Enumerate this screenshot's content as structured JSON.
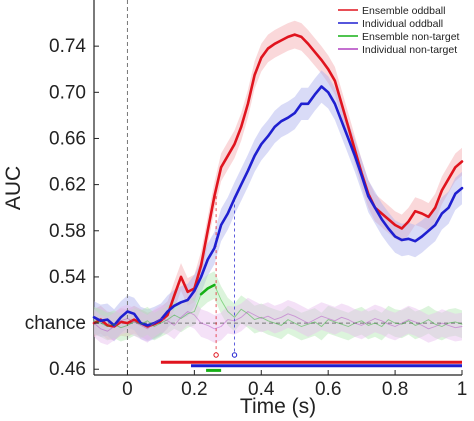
{
  "chart_data": {
    "type": "line",
    "title": "",
    "xlabel": "Time (s)",
    "ylabel": "AUC",
    "xlim": [
      -0.1,
      1.0
    ],
    "ylim": [
      0.455,
      0.78
    ],
    "grid": false,
    "legend_position": "top-right",
    "x_ticks": [
      0,
      0.2,
      0.4,
      0.6,
      0.8,
      1
    ],
    "x_tick_labels": [
      "0",
      "0.2",
      "0.4",
      "0.6",
      "0.8",
      "1"
    ],
    "y_ticks": [
      0.46,
      0.5,
      0.54,
      0.58,
      0.62,
      0.66,
      0.7,
      0.74
    ],
    "y_tick_labels": [
      "0.46",
      "chance",
      "0.54",
      "0.58",
      "0.62",
      "0.66",
      "0.70",
      "0.74"
    ],
    "chance_level": 0.5,
    "stimulus_onset": 0,
    "markers": [
      {
        "x": 0.265,
        "y": 0.61,
        "color": "#e0141e"
      },
      {
        "x": 0.32,
        "y": 0.608,
        "color": "#1f1fd0"
      }
    ],
    "series": [
      {
        "name": "Ensemble oddball",
        "color": "#e0141e",
        "band_color": "#f4a8ac",
        "error": 0.012,
        "x": [
          -0.1,
          -0.08,
          -0.06,
          -0.04,
          -0.02,
          0,
          0.02,
          0.04,
          0.06,
          0.08,
          0.1,
          0.12,
          0.14,
          0.16,
          0.18,
          0.2,
          0.22,
          0.24,
          0.26,
          0.28,
          0.3,
          0.32,
          0.34,
          0.36,
          0.38,
          0.4,
          0.42,
          0.44,
          0.46,
          0.48,
          0.5,
          0.52,
          0.54,
          0.56,
          0.58,
          0.6,
          0.62,
          0.64,
          0.66,
          0.68,
          0.7,
          0.72,
          0.74,
          0.76,
          0.78,
          0.8,
          0.82,
          0.84,
          0.86,
          0.88,
          0.9,
          0.92,
          0.94,
          0.96,
          0.98,
          1.0
        ],
        "y": [
          0.5,
          0.503,
          0.498,
          0.497,
          0.501,
          0.5,
          0.503,
          0.5,
          0.497,
          0.499,
          0.502,
          0.507,
          0.524,
          0.54,
          0.527,
          0.53,
          0.55,
          0.58,
          0.61,
          0.635,
          0.645,
          0.655,
          0.67,
          0.69,
          0.715,
          0.73,
          0.738,
          0.742,
          0.745,
          0.748,
          0.75,
          0.748,
          0.742,
          0.735,
          0.728,
          0.72,
          0.71,
          0.69,
          0.67,
          0.65,
          0.63,
          0.612,
          0.6,
          0.595,
          0.59,
          0.585,
          0.582,
          0.588,
          0.597,
          0.595,
          0.592,
          0.6,
          0.615,
          0.625,
          0.635,
          0.64
        ]
      },
      {
        "name": "Individual oddball",
        "color": "#1f1fd0",
        "band_color": "#aab0ee",
        "error": 0.014,
        "x": [
          -0.1,
          -0.08,
          -0.06,
          -0.04,
          -0.02,
          0,
          0.02,
          0.04,
          0.06,
          0.08,
          0.1,
          0.12,
          0.14,
          0.16,
          0.18,
          0.2,
          0.22,
          0.24,
          0.26,
          0.28,
          0.3,
          0.32,
          0.34,
          0.36,
          0.38,
          0.4,
          0.42,
          0.44,
          0.46,
          0.48,
          0.5,
          0.52,
          0.54,
          0.56,
          0.58,
          0.6,
          0.62,
          0.64,
          0.66,
          0.68,
          0.7,
          0.72,
          0.74,
          0.76,
          0.78,
          0.8,
          0.82,
          0.84,
          0.86,
          0.88,
          0.9,
          0.92,
          0.94,
          0.96,
          0.98,
          1.0
        ],
        "y": [
          0.505,
          0.502,
          0.503,
          0.498,
          0.505,
          0.51,
          0.508,
          0.5,
          0.498,
          0.5,
          0.503,
          0.51,
          0.515,
          0.518,
          0.52,
          0.528,
          0.54,
          0.555,
          0.565,
          0.585,
          0.595,
          0.608,
          0.62,
          0.632,
          0.645,
          0.655,
          0.662,
          0.67,
          0.675,
          0.678,
          0.682,
          0.69,
          0.69,
          0.698,
          0.705,
          0.7,
          0.69,
          0.675,
          0.66,
          0.645,
          0.628,
          0.61,
          0.6,
          0.59,
          0.582,
          0.575,
          0.572,
          0.573,
          0.571,
          0.575,
          0.58,
          0.585,
          0.595,
          0.6,
          0.612,
          0.617
        ]
      },
      {
        "name": "Ensemble non-target",
        "color": "#16b016",
        "band_color": "#b2e6b2",
        "error": 0.012,
        "x": [
          -0.1,
          -0.08,
          -0.06,
          -0.04,
          -0.02,
          0,
          0.02,
          0.04,
          0.06,
          0.08,
          0.1,
          0.12,
          0.14,
          0.16,
          0.18,
          0.2,
          0.22,
          0.24,
          0.26,
          0.28,
          0.3,
          0.32,
          0.34,
          0.36,
          0.38,
          0.4,
          0.42,
          0.44,
          0.46,
          0.48,
          0.5,
          0.52,
          0.54,
          0.56,
          0.58,
          0.6,
          0.62,
          0.64,
          0.66,
          0.68,
          0.7,
          0.72,
          0.74,
          0.76,
          0.78,
          0.8,
          0.82,
          0.84,
          0.86,
          0.88,
          0.9,
          0.92,
          0.94,
          0.96,
          0.98,
          1.0
        ],
        "y": [
          0.502,
          0.5,
          0.497,
          0.499,
          0.496,
          0.498,
          0.501,
          0.499,
          0.502,
          0.497,
          0.5,
          0.503,
          0.507,
          0.504,
          0.508,
          0.51,
          0.525,
          0.53,
          0.533,
          0.52,
          0.51,
          0.505,
          0.512,
          0.508,
          0.503,
          0.505,
          0.502,
          0.5,
          0.498,
          0.503,
          0.5,
          0.497,
          0.499,
          0.501,
          0.497,
          0.503,
          0.501,
          0.499,
          0.497,
          0.5,
          0.502,
          0.498,
          0.5,
          0.497,
          0.503,
          0.5,
          0.499,
          0.502,
          0.498,
          0.5,
          0.503,
          0.499,
          0.497,
          0.5,
          0.501,
          0.499
        ]
      },
      {
        "name": "Individual non-target",
        "color": "#b040c0",
        "band_color": "#e6bcee",
        "error": 0.012,
        "x": [
          -0.1,
          -0.08,
          -0.06,
          -0.04,
          -0.02,
          0,
          0.02,
          0.04,
          0.06,
          0.08,
          0.1,
          0.12,
          0.14,
          0.16,
          0.18,
          0.2,
          0.22,
          0.24,
          0.26,
          0.28,
          0.3,
          0.32,
          0.34,
          0.36,
          0.38,
          0.4,
          0.42,
          0.44,
          0.46,
          0.48,
          0.5,
          0.52,
          0.54,
          0.56,
          0.58,
          0.6,
          0.62,
          0.64,
          0.66,
          0.68,
          0.7,
          0.72,
          0.74,
          0.76,
          0.78,
          0.8,
          0.82,
          0.84,
          0.86,
          0.88,
          0.9,
          0.92,
          0.94,
          0.96,
          0.98,
          1.0
        ],
        "y": [
          0.5,
          0.495,
          0.493,
          0.497,
          0.502,
          0.504,
          0.501,
          0.498,
          0.495,
          0.5,
          0.504,
          0.502,
          0.498,
          0.505,
          0.51,
          0.507,
          0.5,
          0.498,
          0.495,
          0.497,
          0.503,
          0.502,
          0.505,
          0.51,
          0.507,
          0.504,
          0.506,
          0.503,
          0.505,
          0.508,
          0.506,
          0.503,
          0.5,
          0.503,
          0.506,
          0.504,
          0.502,
          0.505,
          0.503,
          0.5,
          0.498,
          0.501,
          0.504,
          0.502,
          0.499,
          0.497,
          0.5,
          0.503,
          0.501,
          0.498,
          0.495,
          0.497,
          0.5,
          0.498,
          0.496,
          0.497
        ]
      }
    ],
    "significance_bars": [
      {
        "name": "Ensemble oddball",
        "color": "#e0141e",
        "y": 0.466,
        "segments": [
          [
            0.1,
            1.0
          ]
        ]
      },
      {
        "name": "Individual oddball",
        "color": "#1f1fd0",
        "y": 0.463,
        "segments": [
          [
            0.19,
            1.0
          ]
        ]
      },
      {
        "name": "Ensemble non-target",
        "color": "#16b016",
        "y": 0.459,
        "segments": [
          [
            0.235,
            0.28
          ]
        ]
      }
    ]
  }
}
